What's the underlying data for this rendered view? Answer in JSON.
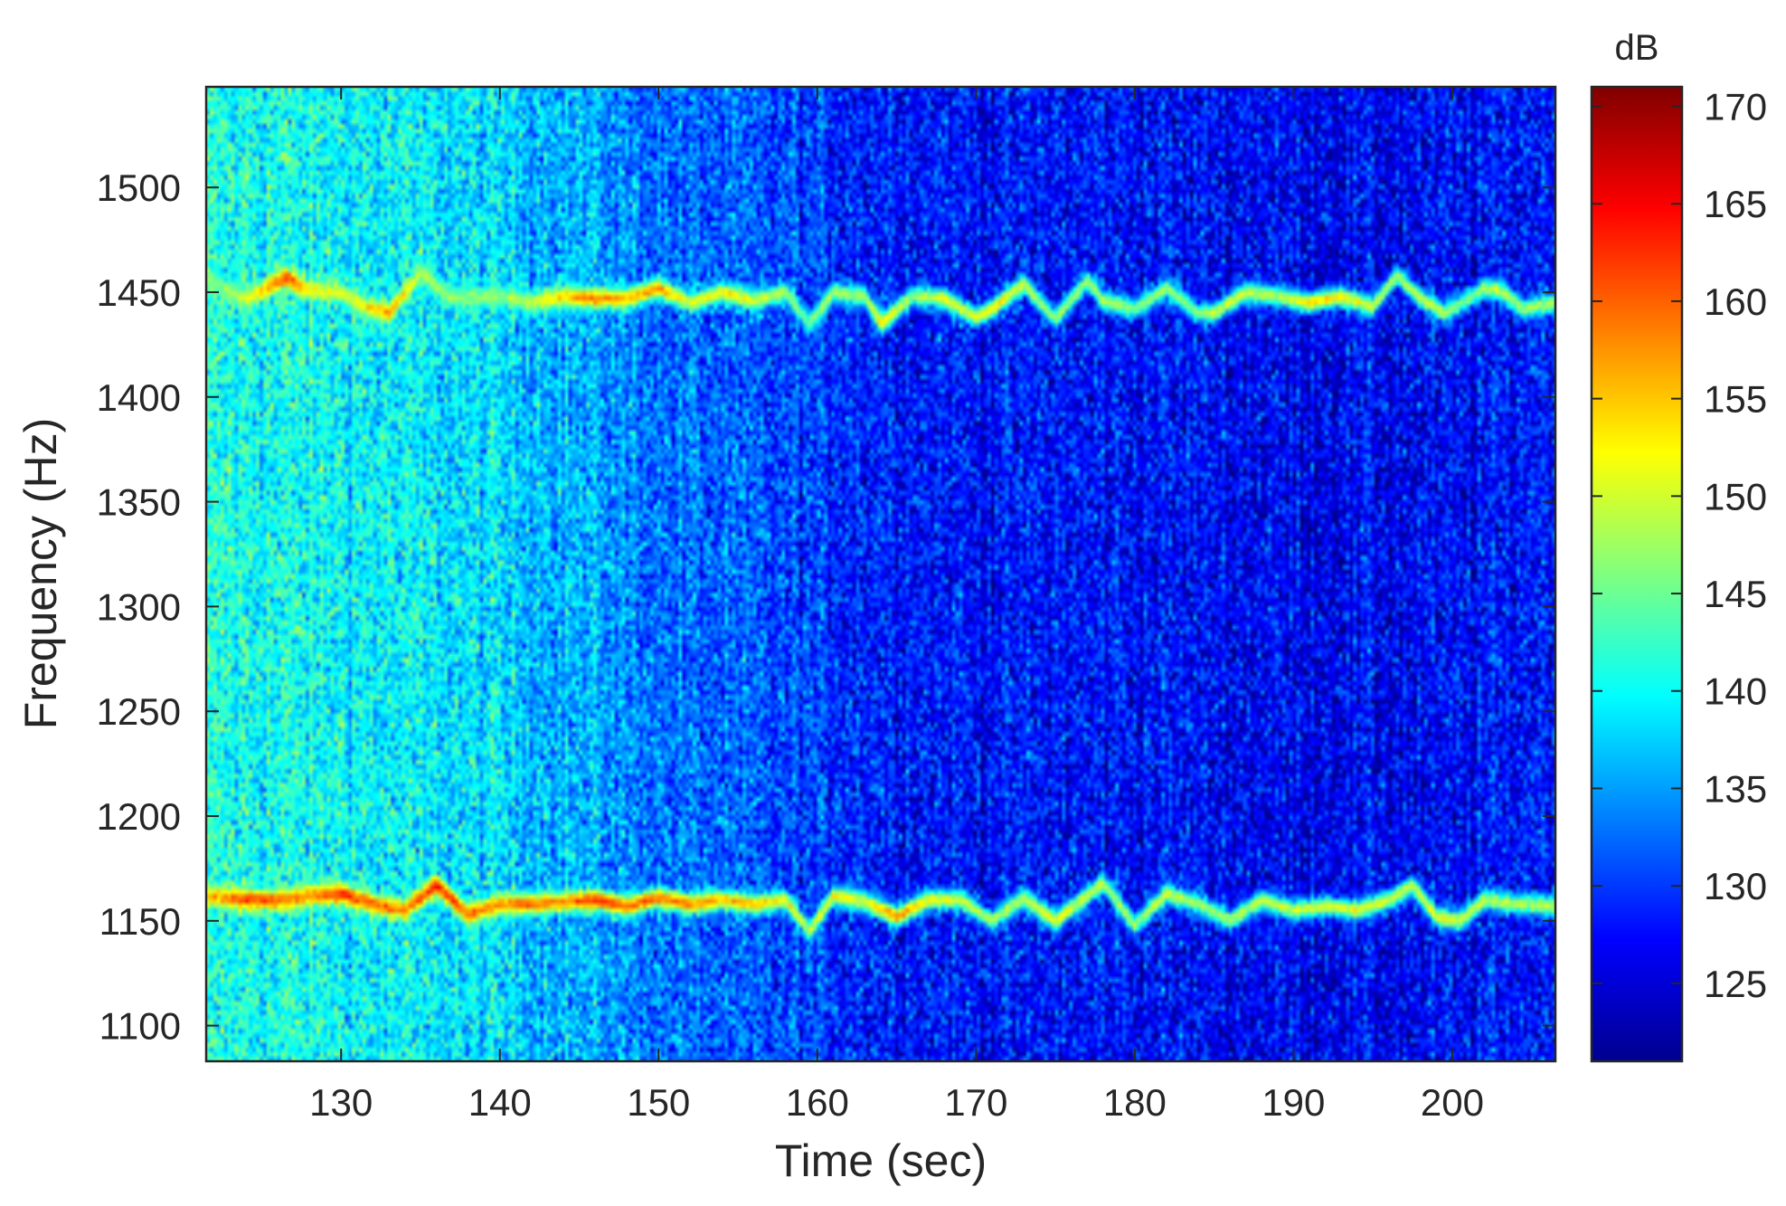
{
  "chart_data": {
    "type": "heatmap",
    "title": "",
    "xlabel": "Time (sec)",
    "ylabel": "Frequency (Hz)",
    "xlim": [
      121.5,
      206.5
    ],
    "ylim": [
      1083,
      1548
    ],
    "xticks": [
      130,
      140,
      150,
      160,
      170,
      180,
      190,
      200
    ],
    "yticks": [
      1100,
      1150,
      1200,
      1250,
      1300,
      1350,
      1400,
      1450,
      1500
    ],
    "colorbar": {
      "title": "dB",
      "range": [
        121,
        171
      ],
      "ticks": [
        125,
        130,
        135,
        140,
        145,
        150,
        155,
        160,
        165,
        170
      ],
      "colormap": "jet"
    },
    "background_level": {
      "x": [
        121.5,
        130,
        140,
        145,
        150,
        160,
        170,
        180,
        190,
        200,
        206.5
      ],
      "values": [
        141,
        140,
        138,
        136,
        133,
        130,
        128,
        128,
        127,
        127,
        129
      ]
    },
    "series": [
      {
        "x": [
          121.5,
          124,
          126.5,
          128,
          130,
          131.5,
          133,
          135,
          137,
          140,
          142,
          144,
          146,
          148,
          150,
          152,
          154,
          156,
          158,
          159.5,
          161,
          163,
          164,
          166,
          168,
          170,
          171,
          173,
          175,
          177,
          178,
          180,
          182,
          184,
          185,
          187,
          189,
          191,
          193,
          195,
          196.5,
          198,
          199.5,
          200.5,
          202,
          203,
          204.5,
          206.5
        ],
        "y": [
          1455,
          1447,
          1457,
          1451,
          1450,
          1443,
          1440,
          1459,
          1447,
          1448,
          1445,
          1448,
          1447,
          1447,
          1452,
          1445,
          1450,
          1446,
          1450,
          1435,
          1450,
          1448,
          1435,
          1448,
          1447,
          1438,
          1442,
          1454,
          1437,
          1456,
          1446,
          1442,
          1452,
          1440,
          1440,
          1450,
          1448,
          1445,
          1448,
          1443,
          1458,
          1447,
          1440,
          1444,
          1452,
          1451,
          1442,
          1445
        ],
        "peak": [
          145,
          150,
          162,
          152,
          150,
          152,
          158,
          148,
          147,
          147,
          150,
          155,
          159,
          156,
          157,
          150,
          154,
          150,
          148,
          146,
          148,
          148,
          155,
          147,
          152,
          150,
          154,
          150,
          147,
          148,
          148,
          147,
          148,
          146,
          150,
          150,
          148,
          154,
          153,
          150,
          148,
          150,
          148,
          145,
          148,
          150,
          148,
          147
        ]
      },
      {
        "x": [
          121.5,
          124,
          126,
          128,
          130,
          132,
          134,
          136,
          138,
          140,
          142,
          144,
          146,
          148,
          150,
          152,
          154,
          156,
          158,
          159.5,
          161,
          163,
          165,
          167,
          169,
          171,
          173,
          175,
          177,
          178,
          180,
          182,
          184,
          186,
          188,
          190,
          192,
          194,
          196,
          197.5,
          199,
          200.5,
          202,
          204,
          206.5
        ],
        "y": [
          1162,
          1160,
          1160,
          1162,
          1163,
          1158,
          1155,
          1167,
          1153,
          1158,
          1158,
          1159,
          1160,
          1157,
          1161,
          1158,
          1160,
          1158,
          1160,
          1145,
          1162,
          1159,
          1152,
          1160,
          1160,
          1150,
          1161,
          1150,
          1162,
          1168,
          1148,
          1163,
          1158,
          1150,
          1160,
          1155,
          1157,
          1155,
          1160,
          1167,
          1152,
          1150,
          1160,
          1158,
          1157
        ],
        "peak": [
          155,
          162,
          160,
          158,
          163,
          160,
          158,
          164,
          160,
          158,
          160,
          158,
          163,
          160,
          160,
          158,
          156,
          155,
          152,
          150,
          152,
          152,
          158,
          152,
          150,
          148,
          150,
          152,
          150,
          150,
          148,
          150,
          148,
          148,
          150,
          150,
          150,
          152,
          150,
          150,
          152,
          150,
          150,
          148,
          150
        ]
      }
    ]
  }
}
